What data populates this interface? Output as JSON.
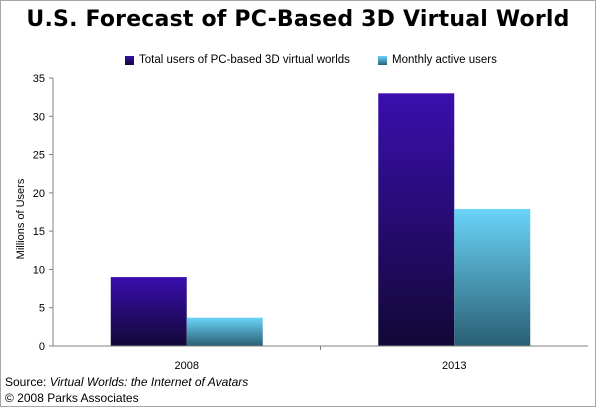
{
  "chart_data": {
    "type": "bar",
    "title": "U.S. Forecast of PC-Based 3D Virtual World",
    "categories": [
      "2008",
      "2013"
    ],
    "series": [
      {
        "name": "Total users of PC-based 3D virtual worlds",
        "values": [
          9,
          33
        ],
        "color_top": "#3a0fae",
        "color_bottom": "#120836"
      },
      {
        "name": "Monthly active users",
        "values": [
          3.7,
          17.9
        ],
        "color_top": "#6ad4f8",
        "color_bottom": "#2a5f74"
      }
    ],
    "xlabel": "",
    "ylabel": "Millions of Users",
    "ylim": [
      0,
      35
    ],
    "yticks": [
      "0",
      "5",
      "10",
      "15",
      "20",
      "25",
      "30",
      "35"
    ],
    "grid": false,
    "legend_position": "top"
  },
  "footer": {
    "source_prefix": "Source: ",
    "source_title": "Virtual Worlds: the Internet of Avatars",
    "copyright": "© 2008 Parks Associates"
  }
}
